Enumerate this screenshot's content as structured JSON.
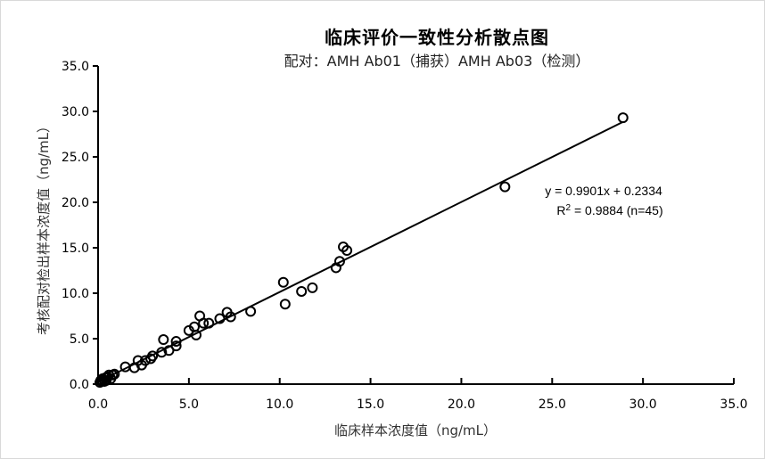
{
  "chart_data": {
    "type": "scatter",
    "title": "临床评价一致性分析散点图",
    "subtitle": "配对：AMH Ab01（捕获）AMH Ab03（检测）",
    "xlabel": "临床样本浓度值（ng/mL）",
    "ylabel": "考核配对检出样本浓度值（ng/mL）",
    "xlim": [
      0,
      35
    ],
    "ylim": [
      0,
      35
    ],
    "xticks": [
      "0.0",
      "5.0",
      "10.0",
      "15.0",
      "20.0",
      "25.0",
      "30.0",
      "35.0"
    ],
    "yticks": [
      "0.0",
      "5.0",
      "10.0",
      "15.0",
      "20.0",
      "25.0",
      "30.0",
      "35.0"
    ],
    "grid": false,
    "legend": null,
    "trendline": {
      "slope": 0.9901,
      "intercept": 0.2334,
      "r2": 0.9884,
      "n": 45
    },
    "annotations": [
      "y = 0.9901x + 0.2334",
      "R² = 0.9884 (n=45)"
    ],
    "points": [
      [
        0.1,
        0.2
      ],
      [
        0.15,
        0.4
      ],
      [
        0.2,
        0.3
      ],
      [
        0.25,
        0.6
      ],
      [
        0.3,
        0.5
      ],
      [
        0.35,
        0.3
      ],
      [
        0.4,
        0.7
      ],
      [
        0.45,
        0.4
      ],
      [
        0.5,
        0.8
      ],
      [
        0.6,
        1.0
      ],
      [
        0.7,
        0.6
      ],
      [
        0.8,
        1.0
      ],
      [
        0.9,
        1.1
      ],
      [
        1.5,
        1.9
      ],
      [
        2.0,
        1.8
      ],
      [
        2.2,
        2.6
      ],
      [
        2.4,
        2.1
      ],
      [
        2.6,
        2.6
      ],
      [
        2.9,
        2.8
      ],
      [
        3.0,
        3.1
      ],
      [
        3.5,
        3.5
      ],
      [
        3.6,
        4.9
      ],
      [
        3.9,
        3.7
      ],
      [
        4.3,
        4.2
      ],
      [
        4.3,
        4.7
      ],
      [
        5.0,
        5.9
      ],
      [
        5.3,
        6.3
      ],
      [
        5.4,
        5.4
      ],
      [
        5.6,
        7.5
      ],
      [
        5.8,
        6.7
      ],
      [
        6.1,
        6.7
      ],
      [
        6.7,
        7.2
      ],
      [
        7.1,
        7.9
      ],
      [
        7.3,
        7.4
      ],
      [
        8.4,
        8.0
      ],
      [
        10.2,
        11.2
      ],
      [
        10.3,
        8.8
      ],
      [
        11.2,
        10.2
      ],
      [
        11.8,
        10.6
      ],
      [
        13.1,
        12.8
      ],
      [
        13.3,
        13.5
      ],
      [
        13.5,
        15.1
      ],
      [
        13.7,
        14.7
      ],
      [
        22.4,
        21.7
      ],
      [
        28.9,
        29.3
      ]
    ]
  },
  "labels": {
    "title": "临床评价一致性分析散点图",
    "subtitle": "配对：AMH Ab01（捕获）AMH Ab03（检测）",
    "xlabel": "临床样本浓度值（ng/mL）",
    "ylabel": "考核配对检出样本浓度值（ng/mL）",
    "eq1": "y = 0.9901x + 0.2334",
    "eq2_prefix": "R",
    "eq2_sup": "2",
    "eq2_suffix": " = 0.9884 (n=45)"
  }
}
